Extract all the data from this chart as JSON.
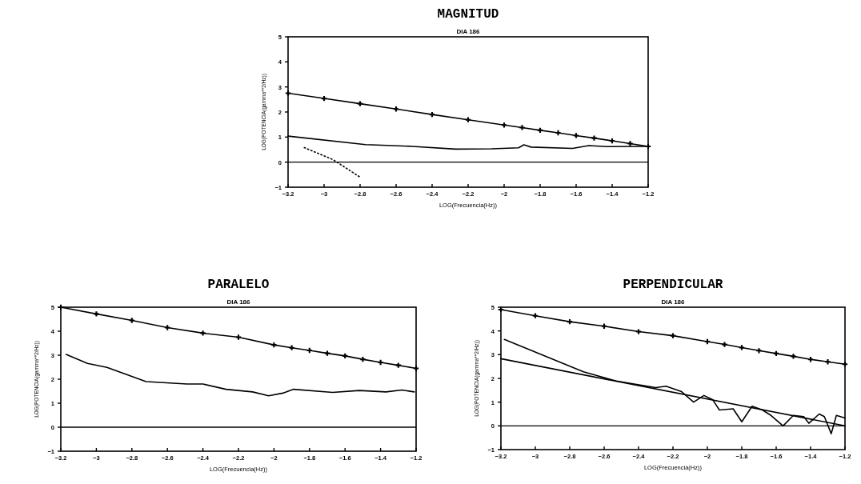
{
  "chart_data": [
    {
      "type": "line",
      "title": "MAGNITUD",
      "subtitle": "DIA 186",
      "xlabel": "LOG(Frecuencia(Hz))",
      "ylabel": "LOG(POTENCIA(gamma**2/Hz))",
      "xlim": [
        -3.2,
        -1.2
      ],
      "ylim": [
        -1,
        5
      ],
      "xticks": [
        -3.2,
        -3,
        -2.8,
        -2.6,
        -2.4,
        -2.2,
        -2,
        -1.8,
        -1.6,
        -1.4,
        -1.2
      ],
      "yticks": [
        -1,
        0,
        1,
        2,
        3,
        4,
        5
      ],
      "series": [
        {
          "color": "#000000",
          "marker": "cross",
          "x": [
            -3.2,
            -3.0,
            -2.8,
            -2.6,
            -2.4,
            -2.2,
            -2.0,
            -1.9,
            -1.8,
            -1.7,
            -1.6,
            -1.5,
            -1.4,
            -1.3,
            -1.2
          ],
          "values": [
            2.75,
            2.54,
            2.33,
            2.12,
            1.9,
            1.69,
            1.48,
            1.38,
            1.27,
            1.17,
            1.06,
            0.96,
            0.85,
            0.74,
            0.63
          ]
        },
        {
          "color": "#000000",
          "marker": "none",
          "x": [
            -3.2,
            -2.77,
            -2.51,
            -2.27,
            -2.07,
            -1.92,
            -1.89,
            -1.85,
            -1.62,
            -1.53,
            -1.43,
            -1.2
          ],
          "values": [
            1.04,
            0.7,
            0.63,
            0.52,
            0.53,
            0.57,
            0.69,
            0.6,
            0.55,
            0.66,
            0.62,
            0.63
          ]
        },
        {
          "color": "#000000",
          "marker": "none",
          "line_style": "dotted",
          "x": [
            -3.11,
            -2.95,
            -2.8
          ],
          "values": [
            0.58,
            0.1,
            -0.6
          ]
        }
      ],
      "ref_lines": [
        {
          "axis": "y",
          "value": 0
        }
      ]
    },
    {
      "type": "line",
      "title": "PARALELO",
      "subtitle": "DIA 186",
      "xlabel": "LOG(Frecuencia(Hz))",
      "ylabel": "LOG(POTENCIA(gamma**2/Hz))",
      "xlim": [
        -3.2,
        -1.2
      ],
      "ylim": [
        -1,
        5
      ],
      "xticks": [
        -3.2,
        -3,
        -2.8,
        -2.6,
        -2.4,
        -2.2,
        -2,
        -1.8,
        -1.6,
        -1.4,
        -1.2
      ],
      "yticks": [
        -1,
        0,
        1,
        2,
        3,
        4,
        5
      ],
      "series": [
        {
          "color": "#000000",
          "marker": "cross",
          "x": [
            -3.2,
            -3.0,
            -2.8,
            -2.6,
            -2.4,
            -2.2,
            -2.0,
            -1.9,
            -1.8,
            -1.7,
            -1.6,
            -1.5,
            -1.4,
            -1.3,
            -1.2
          ],
          "values": [
            5.0,
            4.72,
            4.45,
            4.15,
            3.92,
            3.75,
            3.43,
            3.31,
            3.2,
            3.08,
            2.97,
            2.83,
            2.7,
            2.58,
            2.45
          ]
        },
        {
          "color": "#000000",
          "marker": "none",
          "x": [
            -3.17,
            -3.05,
            -2.94,
            -2.72,
            -2.49,
            -2.4,
            -2.27,
            -2.12,
            -2.03,
            -1.95,
            -1.89,
            -1.67,
            -1.52,
            -1.37,
            -1.28,
            -1.21
          ],
          "values": [
            3.03,
            2.66,
            2.49,
            1.9,
            1.8,
            1.8,
            1.58,
            1.47,
            1.31,
            1.42,
            1.58,
            1.45,
            1.53,
            1.47,
            1.55,
            1.47
          ]
        }
      ],
      "ref_lines": [
        {
          "axis": "y",
          "value": 0
        }
      ]
    },
    {
      "type": "line",
      "title": "PERPENDICULAR",
      "subtitle": "DIA 186",
      "xlabel": "LOG(Frecuencia(Hz))",
      "ylabel": "LOG(POTENCIA(gamma**2/Hz))",
      "xlim": [
        -3.2,
        -1.2
      ],
      "ylim": [
        -1,
        5
      ],
      "xticks": [
        -3.2,
        -3,
        -2.8,
        -2.6,
        -2.4,
        -2.2,
        -2,
        -1.8,
        -1.6,
        -1.4,
        -1.2
      ],
      "yticks": [
        -1,
        0,
        1,
        2,
        3,
        4,
        5
      ],
      "series": [
        {
          "color": "#000000",
          "marker": "cross",
          "x": [
            -3.2,
            -3.0,
            -2.8,
            -2.6,
            -2.4,
            -2.2,
            -2.0,
            -1.9,
            -1.8,
            -1.7,
            -1.6,
            -1.5,
            -1.4,
            -1.3,
            -1.2
          ],
          "values": [
            4.9,
            4.64,
            4.39,
            4.2,
            3.97,
            3.8,
            3.55,
            3.43,
            3.3,
            3.17,
            3.05,
            2.93,
            2.8,
            2.7,
            2.6
          ]
        },
        {
          "color": "#000000",
          "marker": "none",
          "x": [
            -3.2,
            -1.2
          ],
          "values": [
            2.83,
            0.0
          ]
        },
        {
          "color": "#000000",
          "marker": "none",
          "x": [
            -3.18,
            -2.72,
            -2.53,
            -2.3,
            -2.24,
            -2.15,
            -2.08,
            -2.02,
            -1.97,
            -1.93,
            -1.85,
            -1.8,
            -1.74,
            -1.68,
            -1.63,
            -1.56,
            -1.5,
            -1.44,
            -1.41,
            -1.35,
            -1.32,
            -1.28,
            -1.25,
            -1.2
          ],
          "values": [
            3.64,
            2.28,
            1.89,
            1.61,
            1.67,
            1.44,
            1.0,
            1.28,
            1.11,
            0.67,
            0.72,
            0.17,
            0.83,
            0.67,
            0.44,
            0.0,
            0.44,
            0.39,
            0.11,
            0.5,
            0.39,
            -0.33,
            0.44,
            0.33
          ]
        }
      ],
      "ref_lines": [
        {
          "axis": "y",
          "value": 0
        }
      ]
    }
  ]
}
